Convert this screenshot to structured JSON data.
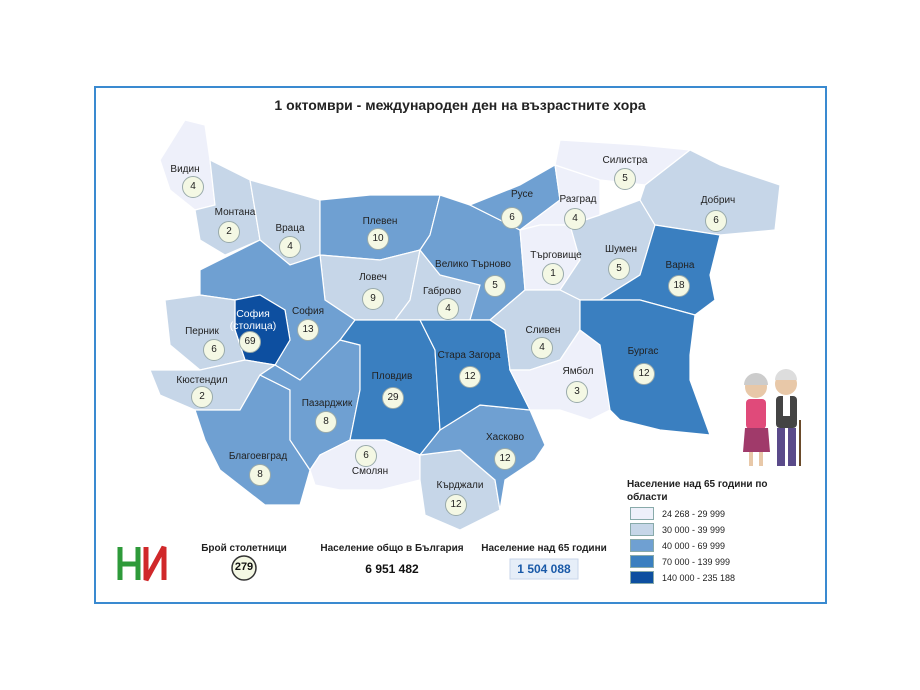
{
  "title": "1 октомври - международен ден на възрастните хора",
  "regions": [
    {
      "name": "Видин",
      "value": 4,
      "color": "#eef0fa"
    },
    {
      "name": "Монтана",
      "value": 2,
      "color": "#c6d6e8"
    },
    {
      "name": "Враца",
      "value": 4,
      "color": "#c6d6e8"
    },
    {
      "name": "Плевен",
      "value": 10,
      "color": "#6fa0d2"
    },
    {
      "name": "Ловеч",
      "value": 9,
      "color": "#c6d6e8"
    },
    {
      "name": "Габрово",
      "value": 4,
      "color": "#c6d6e8"
    },
    {
      "name": "Велико Търново",
      "value": 5,
      "color": "#6fa0d2"
    },
    {
      "name": "Русе",
      "value": 6,
      "color": "#6fa0d2"
    },
    {
      "name": "Разград",
      "value": 4,
      "color": "#eef0fa"
    },
    {
      "name": "Силистра",
      "value": 5,
      "color": "#eef0fa"
    },
    {
      "name": "Търговище",
      "value": 1,
      "color": "#eef0fa"
    },
    {
      "name": "Шумен",
      "value": 5,
      "color": "#c6d6e8"
    },
    {
      "name": "Добрич",
      "value": 6,
      "color": "#c6d6e8"
    },
    {
      "name": "Варна",
      "value": 18,
      "color": "#3a7fc0"
    },
    {
      "name": "София",
      "value": 13,
      "color": "#6fa0d2"
    },
    {
      "name": "София (столица)",
      "value": 69,
      "color": "#0d4fa0"
    },
    {
      "name": "Перник",
      "value": 6,
      "color": "#c6d6e8"
    },
    {
      "name": "Кюстендил",
      "value": 2,
      "color": "#c6d6e8"
    },
    {
      "name": "Благоевград",
      "value": 8,
      "color": "#6fa0d2"
    },
    {
      "name": "Пазарджик",
      "value": 8,
      "color": "#6fa0d2"
    },
    {
      "name": "Пловдив",
      "value": 29,
      "color": "#3a7fc0"
    },
    {
      "name": "Смолян",
      "value": 6,
      "color": "#eef0fa"
    },
    {
      "name": "Кърджали",
      "value": 12,
      "color": "#c6d6e8"
    },
    {
      "name": "Хасково",
      "value": 12,
      "color": "#6fa0d2"
    },
    {
      "name": "Стара Загора",
      "value": 12,
      "color": "#3a7fc0"
    },
    {
      "name": "Сливен",
      "value": 4,
      "color": "#c6d6e8"
    },
    {
      "name": "Ямбол",
      "value": 3,
      "color": "#eef0fa"
    },
    {
      "name": "Бургас",
      "value": 12,
      "color": "#3a7fc0"
    }
  ],
  "legend": {
    "title": "Население над 65 години по области",
    "items": [
      {
        "label": "24 268 -  29 999",
        "color": "#eef0fa"
      },
      {
        "label": "30 000 -  39 999",
        "color": "#c6d6e8"
      },
      {
        "label": "40 000 -  69 999",
        "color": "#6fa0d2"
      },
      {
        "label": "70 000 - 139 999",
        "color": "#3a7fc0"
      },
      {
        "label": "140 000 - 235 188",
        "color": "#0d4fa0"
      }
    ]
  },
  "stats": [
    {
      "label": "Брой столетници",
      "value": 279
    },
    {
      "label": "Население общо в България",
      "value": "6 951 482"
    },
    {
      "label": "Население над 65 години",
      "value": "1 504 088"
    }
  ]
}
